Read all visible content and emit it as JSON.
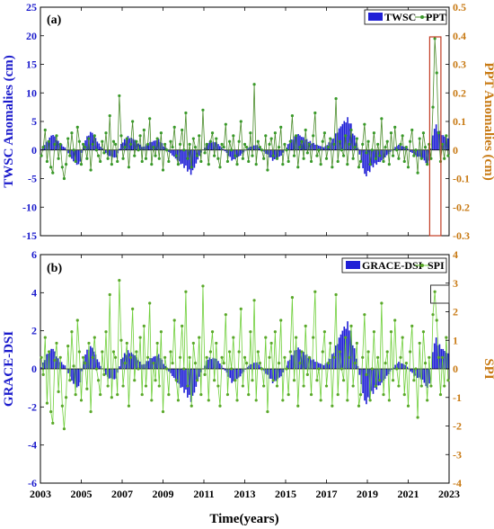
{
  "chart_data": [
    {
      "panel": "(a)",
      "type": "bar+line",
      "ylabel": "TWSC Anomalies (cm)",
      "y2label": "PPT Anomalies (cm)",
      "ylim": [
        -15,
        25
      ],
      "y2lim": [
        -0.3,
        0.5
      ],
      "yticks": [
        "-15",
        "-10",
        "-5",
        "0",
        "5",
        "10",
        "15",
        "20",
        "25"
      ],
      "y2ticks": [
        "-0.3",
        "-0.2",
        "-0.1",
        "0",
        "0.1",
        "0.2",
        "0.3",
        "0.4",
        "0.5"
      ],
      "legend": {
        "placement": "top-right",
        "bar_label": "TWSC",
        "line_label": "PPT"
      },
      "bar_series": {
        "name": "TWSC",
        "color": "#1f1fd6",
        "anchors": [
          [
            2003.0,
            0
          ],
          [
            2003.3,
            1.5
          ],
          [
            2003.6,
            3
          ],
          [
            2003.9,
            1.5
          ],
          [
            2004.2,
            0.5
          ],
          [
            2004.6,
            -2
          ],
          [
            2004.9,
            -3
          ],
          [
            2005.2,
            2
          ],
          [
            2005.5,
            3.5
          ],
          [
            2005.9,
            1
          ],
          [
            2006.3,
            -1
          ],
          [
            2006.7,
            -1.5
          ],
          [
            2007.0,
            1.5
          ],
          [
            2007.3,
            2.5
          ],
          [
            2007.6,
            2
          ],
          [
            2008.0,
            0.5
          ],
          [
            2008.4,
            1.5
          ],
          [
            2008.8,
            2
          ],
          [
            2009.2,
            0
          ],
          [
            2009.6,
            -1.5
          ],
          [
            2010.0,
            -3
          ],
          [
            2010.4,
            -4.5
          ],
          [
            2010.8,
            -1
          ],
          [
            2011.2,
            1.5
          ],
          [
            2011.6,
            1.5
          ],
          [
            2012.0,
            0
          ],
          [
            2012.4,
            -2
          ],
          [
            2012.8,
            -1
          ],
          [
            2013.2,
            0.5
          ],
          [
            2013.6,
            1
          ],
          [
            2014.0,
            -0.5
          ],
          [
            2014.4,
            -2
          ],
          [
            2014.8,
            -1
          ],
          [
            2015.2,
            1.5
          ],
          [
            2015.6,
            3
          ],
          [
            2016.0,
            2
          ],
          [
            2016.5,
            1
          ],
          [
            2016.9,
            0.5
          ],
          [
            2017.3,
            2
          ],
          [
            2017.8,
            5
          ],
          [
            2018.1,
            6
          ],
          [
            2018.5,
            1
          ],
          [
            2018.9,
            -5
          ],
          [
            2019.3,
            -3
          ],
          [
            2019.7,
            -2
          ],
          [
            2020.1,
            -0.5
          ],
          [
            2020.5,
            1
          ],
          [
            2020.9,
            0.5
          ],
          [
            2021.3,
            -1
          ],
          [
            2021.7,
            -1.5
          ],
          [
            2022.0,
            -3
          ],
          [
            2022.3,
            5
          ],
          [
            2022.6,
            3
          ],
          [
            2023.0,
            2
          ]
        ]
      },
      "line_series": {
        "name": "PPT",
        "color": "#4a8c2a",
        "marker_color": "#3a9a2a",
        "values": [
          -0.02,
          0.01,
          0.07,
          -0.04,
          0.03,
          -0.06,
          -0.08,
          0.02,
          0.05,
          -0.03,
          0.02,
          -0.06,
          -0.1,
          -0.05,
          0.04,
          -0.02,
          0.06,
          0.0,
          -0.04,
          0.08,
          0.03,
          -0.05,
          0.02,
          0.01,
          -0.03,
          0.04,
          -0.07,
          0.02,
          0.05,
          0.0,
          -0.02,
          -0.04,
          0.03,
          -0.01,
          0.06,
          -0.03,
          0.12,
          -0.05,
          0.03,
          0.02,
          -0.04,
          0.19,
          0.05,
          -0.03,
          0.01,
          0.04,
          -0.06,
          0.02,
          0.1,
          -0.02,
          0.03,
          0.0,
          0.05,
          -0.04,
          0.07,
          -0.03,
          0.02,
          0.11,
          -0.05,
          0.01,
          -0.02,
          0.04,
          -0.03,
          0.06,
          -0.07,
          0.02,
          0.0,
          -0.04,
          0.03,
          0.01,
          0.08,
          -0.02,
          -0.05,
          0.02,
          0.07,
          0.0,
          0.13,
          -0.03,
          0.02,
          -0.06,
          0.04,
          0.01,
          -0.02,
          0.05,
          -0.04,
          0.14,
          -0.01,
          0.02,
          -0.05,
          0.03,
          0.06,
          -0.02,
          0.04,
          -0.03,
          -0.06,
          0.02,
          0.01,
          0.09,
          -0.04,
          0.03,
          0.0,
          0.05,
          -0.02,
          -0.05,
          0.03,
          0.1,
          -0.03,
          0.02,
          0.01,
          -0.04,
          0.06,
          -0.02,
          0.23,
          -0.05,
          0.03,
          0.01,
          0.0,
          -0.03,
          0.05,
          -0.07,
          0.02,
          0.04,
          -0.02,
          0.06,
          -0.03,
          0.01,
          0.08,
          -0.05,
          0.02,
          0.0,
          -0.04,
          0.03,
          0.12,
          -0.02,
          0.05,
          -0.06,
          0.01,
          0.03,
          -0.03,
          0.07,
          -0.01,
          0.02,
          -0.04,
          0.05,
          0.13,
          -0.02,
          0.0,
          -0.05,
          0.03,
          0.06,
          -0.03,
          0.01,
          0.04,
          -0.06,
          0.02,
          0.18,
          -0.04,
          0.03,
          0.0,
          -0.02,
          0.05,
          -0.05,
          0.02,
          0.07,
          -0.03,
          0.01,
          0.04,
          -0.06,
          -0.04,
          0.02,
          0.09,
          -0.01,
          0.03,
          -0.05,
          0.0,
          0.06,
          -0.03,
          0.02,
          -0.02,
          0.11,
          -0.04,
          0.01,
          0.03,
          -0.05,
          0.06,
          -0.02,
          0.08,
          0.0,
          -0.03,
          0.02,
          0.05,
          -0.04,
          0.01,
          -0.06,
          0.03,
          0.07,
          -0.02,
          0.0,
          -0.08,
          0.04,
          -0.03,
          0.06,
          0.01,
          -0.05,
          0.02,
          -0.03,
          0.15,
          0.39,
          0.27,
          0.06,
          -0.04,
          0.02,
          -0.03,
          0.05,
          -0.02
        ]
      }
    },
    {
      "panel": "(b)",
      "type": "bar+line",
      "ylabel": "GRACE-DSI",
      "y2label": "SPI",
      "xlabel": "Time(years)",
      "ylim": [
        -6,
        6
      ],
      "y2lim": [
        -4,
        4
      ],
      "yticks": [
        "-6",
        "-4",
        "-2",
        "0",
        "2",
        "4",
        "6"
      ],
      "y2ticks": [
        "-4",
        "-3",
        "-2",
        "-1",
        "0",
        "1",
        "2",
        "3",
        "4"
      ],
      "xlim": [
        2003,
        2023
      ],
      "xticks": [
        "2003",
        "2005",
        "2007",
        "2009",
        "2011",
        "2013",
        "2015",
        "2017",
        "2019",
        "2021",
        "2023"
      ],
      "legend": {
        "placement": "top-right",
        "bar_label": "GRACE-DSI",
        "line_label": "SPI"
      },
      "bar_series": {
        "name": "GRACE-DSI",
        "color": "#1f1fd6",
        "anchors": [
          [
            2003.0,
            0
          ],
          [
            2003.3,
            0.8
          ],
          [
            2003.6,
            1.2
          ],
          [
            2003.9,
            0.5
          ],
          [
            2004.2,
            0.2
          ],
          [
            2004.6,
            -0.8
          ],
          [
            2004.9,
            -1.1
          ],
          [
            2005.2,
            0.9
          ],
          [
            2005.5,
            1.3
          ],
          [
            2005.9,
            0.3
          ],
          [
            2006.3,
            -0.5
          ],
          [
            2006.7,
            -0.6
          ],
          [
            2007.0,
            0.7
          ],
          [
            2007.3,
            1.0
          ],
          [
            2007.6,
            0.8
          ],
          [
            2008.0,
            0.2
          ],
          [
            2008.4,
            0.6
          ],
          [
            2008.8,
            0.8
          ],
          [
            2009.2,
            0.0
          ],
          [
            2009.6,
            -0.6
          ],
          [
            2010.0,
            -1.2
          ],
          [
            2010.4,
            -1.8
          ],
          [
            2010.8,
            -0.4
          ],
          [
            2011.2,
            0.6
          ],
          [
            2011.6,
            0.6
          ],
          [
            2012.0,
            0.0
          ],
          [
            2012.4,
            -0.8
          ],
          [
            2012.8,
            -0.4
          ],
          [
            2013.2,
            0.2
          ],
          [
            2013.6,
            0.4
          ],
          [
            2014.0,
            -0.2
          ],
          [
            2014.4,
            -0.8
          ],
          [
            2014.8,
            -0.4
          ],
          [
            2015.2,
            0.6
          ],
          [
            2015.6,
            1.2
          ],
          [
            2016.0,
            0.8
          ],
          [
            2016.5,
            0.4
          ],
          [
            2016.9,
            0.2
          ],
          [
            2017.3,
            0.8
          ],
          [
            2017.8,
            2.2
          ],
          [
            2018.1,
            2.6
          ],
          [
            2018.5,
            0.4
          ],
          [
            2018.9,
            -2.0
          ],
          [
            2019.3,
            -1.3
          ],
          [
            2019.7,
            -0.8
          ],
          [
            2020.1,
            -0.2
          ],
          [
            2020.5,
            0.4
          ],
          [
            2020.9,
            0.2
          ],
          [
            2021.3,
            -0.4
          ],
          [
            2021.7,
            -0.6
          ],
          [
            2022.0,
            -1.2
          ],
          [
            2022.3,
            1.8
          ],
          [
            2022.6,
            1.2
          ],
          [
            2023.0,
            0.8
          ]
        ]
      },
      "line_series": {
        "name": "SPI",
        "color": "#6fcf3a",
        "marker_color": "#5aa82a",
        "values": [
          0.4,
          -0.2,
          1.1,
          -1.2,
          0.6,
          -1.5,
          -1.9,
          0.3,
          0.9,
          -0.8,
          0.4,
          -1.3,
          -2.1,
          -1.0,
          0.8,
          -0.4,
          1.3,
          0.1,
          -0.9,
          1.7,
          0.6,
          -1.1,
          0.4,
          0.2,
          -0.7,
          0.9,
          -1.5,
          0.4,
          1.1,
          0.0,
          -0.4,
          -0.9,
          0.6,
          -0.2,
          1.3,
          -0.6,
          2.6,
          -1.0,
          0.6,
          0.4,
          -0.9,
          3.1,
          1.0,
          -0.6,
          0.2,
          0.9,
          -1.3,
          0.4,
          2.1,
          -0.4,
          0.6,
          0.0,
          1.1,
          -0.9,
          1.5,
          -0.6,
          0.4,
          2.3,
          -1.1,
          0.2,
          -0.4,
          0.9,
          -0.6,
          1.3,
          -1.5,
          0.4,
          0.0,
          -0.9,
          0.6,
          0.2,
          1.7,
          -0.4,
          -1.1,
          0.4,
          1.5,
          0.0,
          2.7,
          -0.6,
          0.4,
          -1.3,
          0.9,
          0.2,
          -0.4,
          1.1,
          -0.9,
          2.9,
          -0.2,
          0.4,
          -1.1,
          0.6,
          1.3,
          -0.4,
          0.9,
          -0.6,
          -1.3,
          0.4,
          0.2,
          1.9,
          -0.9,
          0.6,
          0.0,
          1.1,
          -0.4,
          -1.1,
          0.6,
          2.1,
          -0.6,
          0.4,
          0.2,
          -0.9,
          1.3,
          -0.4,
          2.4,
          -1.1,
          0.6,
          0.2,
          0.0,
          -0.6,
          1.1,
          -1.5,
          0.4,
          0.9,
          -0.4,
          1.3,
          -0.6,
          0.2,
          1.7,
          -1.1,
          0.4,
          0.0,
          -0.9,
          0.6,
          2.5,
          -0.4,
          1.1,
          -1.3,
          0.2,
          0.6,
          -0.6,
          1.5,
          -0.2,
          0.4,
          -0.9,
          1.1,
          2.7,
          -0.4,
          0.0,
          -1.1,
          0.6,
          1.3,
          -0.6,
          0.2,
          0.9,
          -1.3,
          0.4,
          2.6,
          -0.9,
          0.6,
          0.0,
          -0.4,
          1.1,
          -1.1,
          0.4,
          1.5,
          -0.6,
          0.2,
          0.9,
          -1.3,
          -0.9,
          0.4,
          1.9,
          -0.2,
          0.6,
          -1.1,
          0.0,
          1.3,
          -0.6,
          0.4,
          -0.4,
          2.3,
          -0.9,
          0.2,
          0.6,
          -1.1,
          1.3,
          -0.4,
          1.7,
          0.0,
          -0.6,
          0.4,
          1.1,
          -0.9,
          0.2,
          -1.3,
          0.6,
          1.5,
          -0.4,
          0.0,
          -1.7,
          0.9,
          -0.6,
          1.3,
          0.2,
          -1.1,
          0.4,
          -0.6,
          1.9,
          2.7,
          1.7,
          0.4,
          -0.9,
          0.4,
          -0.6,
          1.1,
          -0.4
        ]
      }
    }
  ]
}
